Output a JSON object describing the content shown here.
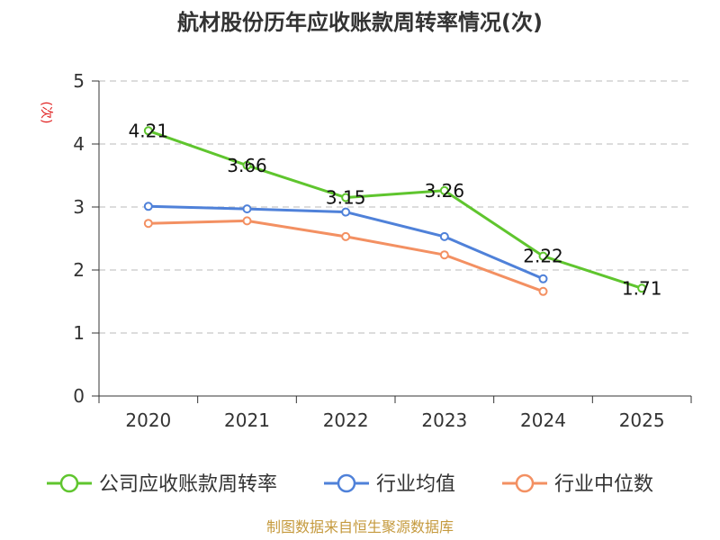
{
  "chart_data": {
    "type": "line",
    "title": "航材股份历年应收账款周转率情况(次)",
    "ylabel": "(次)",
    "xlabel": "",
    "categories": [
      "2020",
      "2021",
      "2022",
      "2023",
      "2024",
      "2025"
    ],
    "ylim": [
      0,
      5
    ],
    "yticks": [
      0,
      1,
      2,
      3,
      4,
      5
    ],
    "grid": true,
    "legend_position": "bottom",
    "series": [
      {
        "name": "公司应收账款周转率",
        "color": "#5fc52e",
        "values": [
          4.21,
          3.66,
          3.15,
          3.26,
          2.22,
          1.71
        ],
        "labels": [
          "4.21",
          "3.66",
          "3.15",
          "3.26",
          "2.22",
          "1.71"
        ]
      },
      {
        "name": "行业均值",
        "color": "#4f81d9",
        "values": [
          3.01,
          2.97,
          2.92,
          2.53,
          1.86,
          null
        ]
      },
      {
        "name": "行业中位数",
        "color": "#f39062",
        "values": [
          2.74,
          2.78,
          2.53,
          2.24,
          1.66,
          null
        ]
      }
    ]
  },
  "footer": {
    "source": "制图数据来自恒生聚源数据库"
  }
}
